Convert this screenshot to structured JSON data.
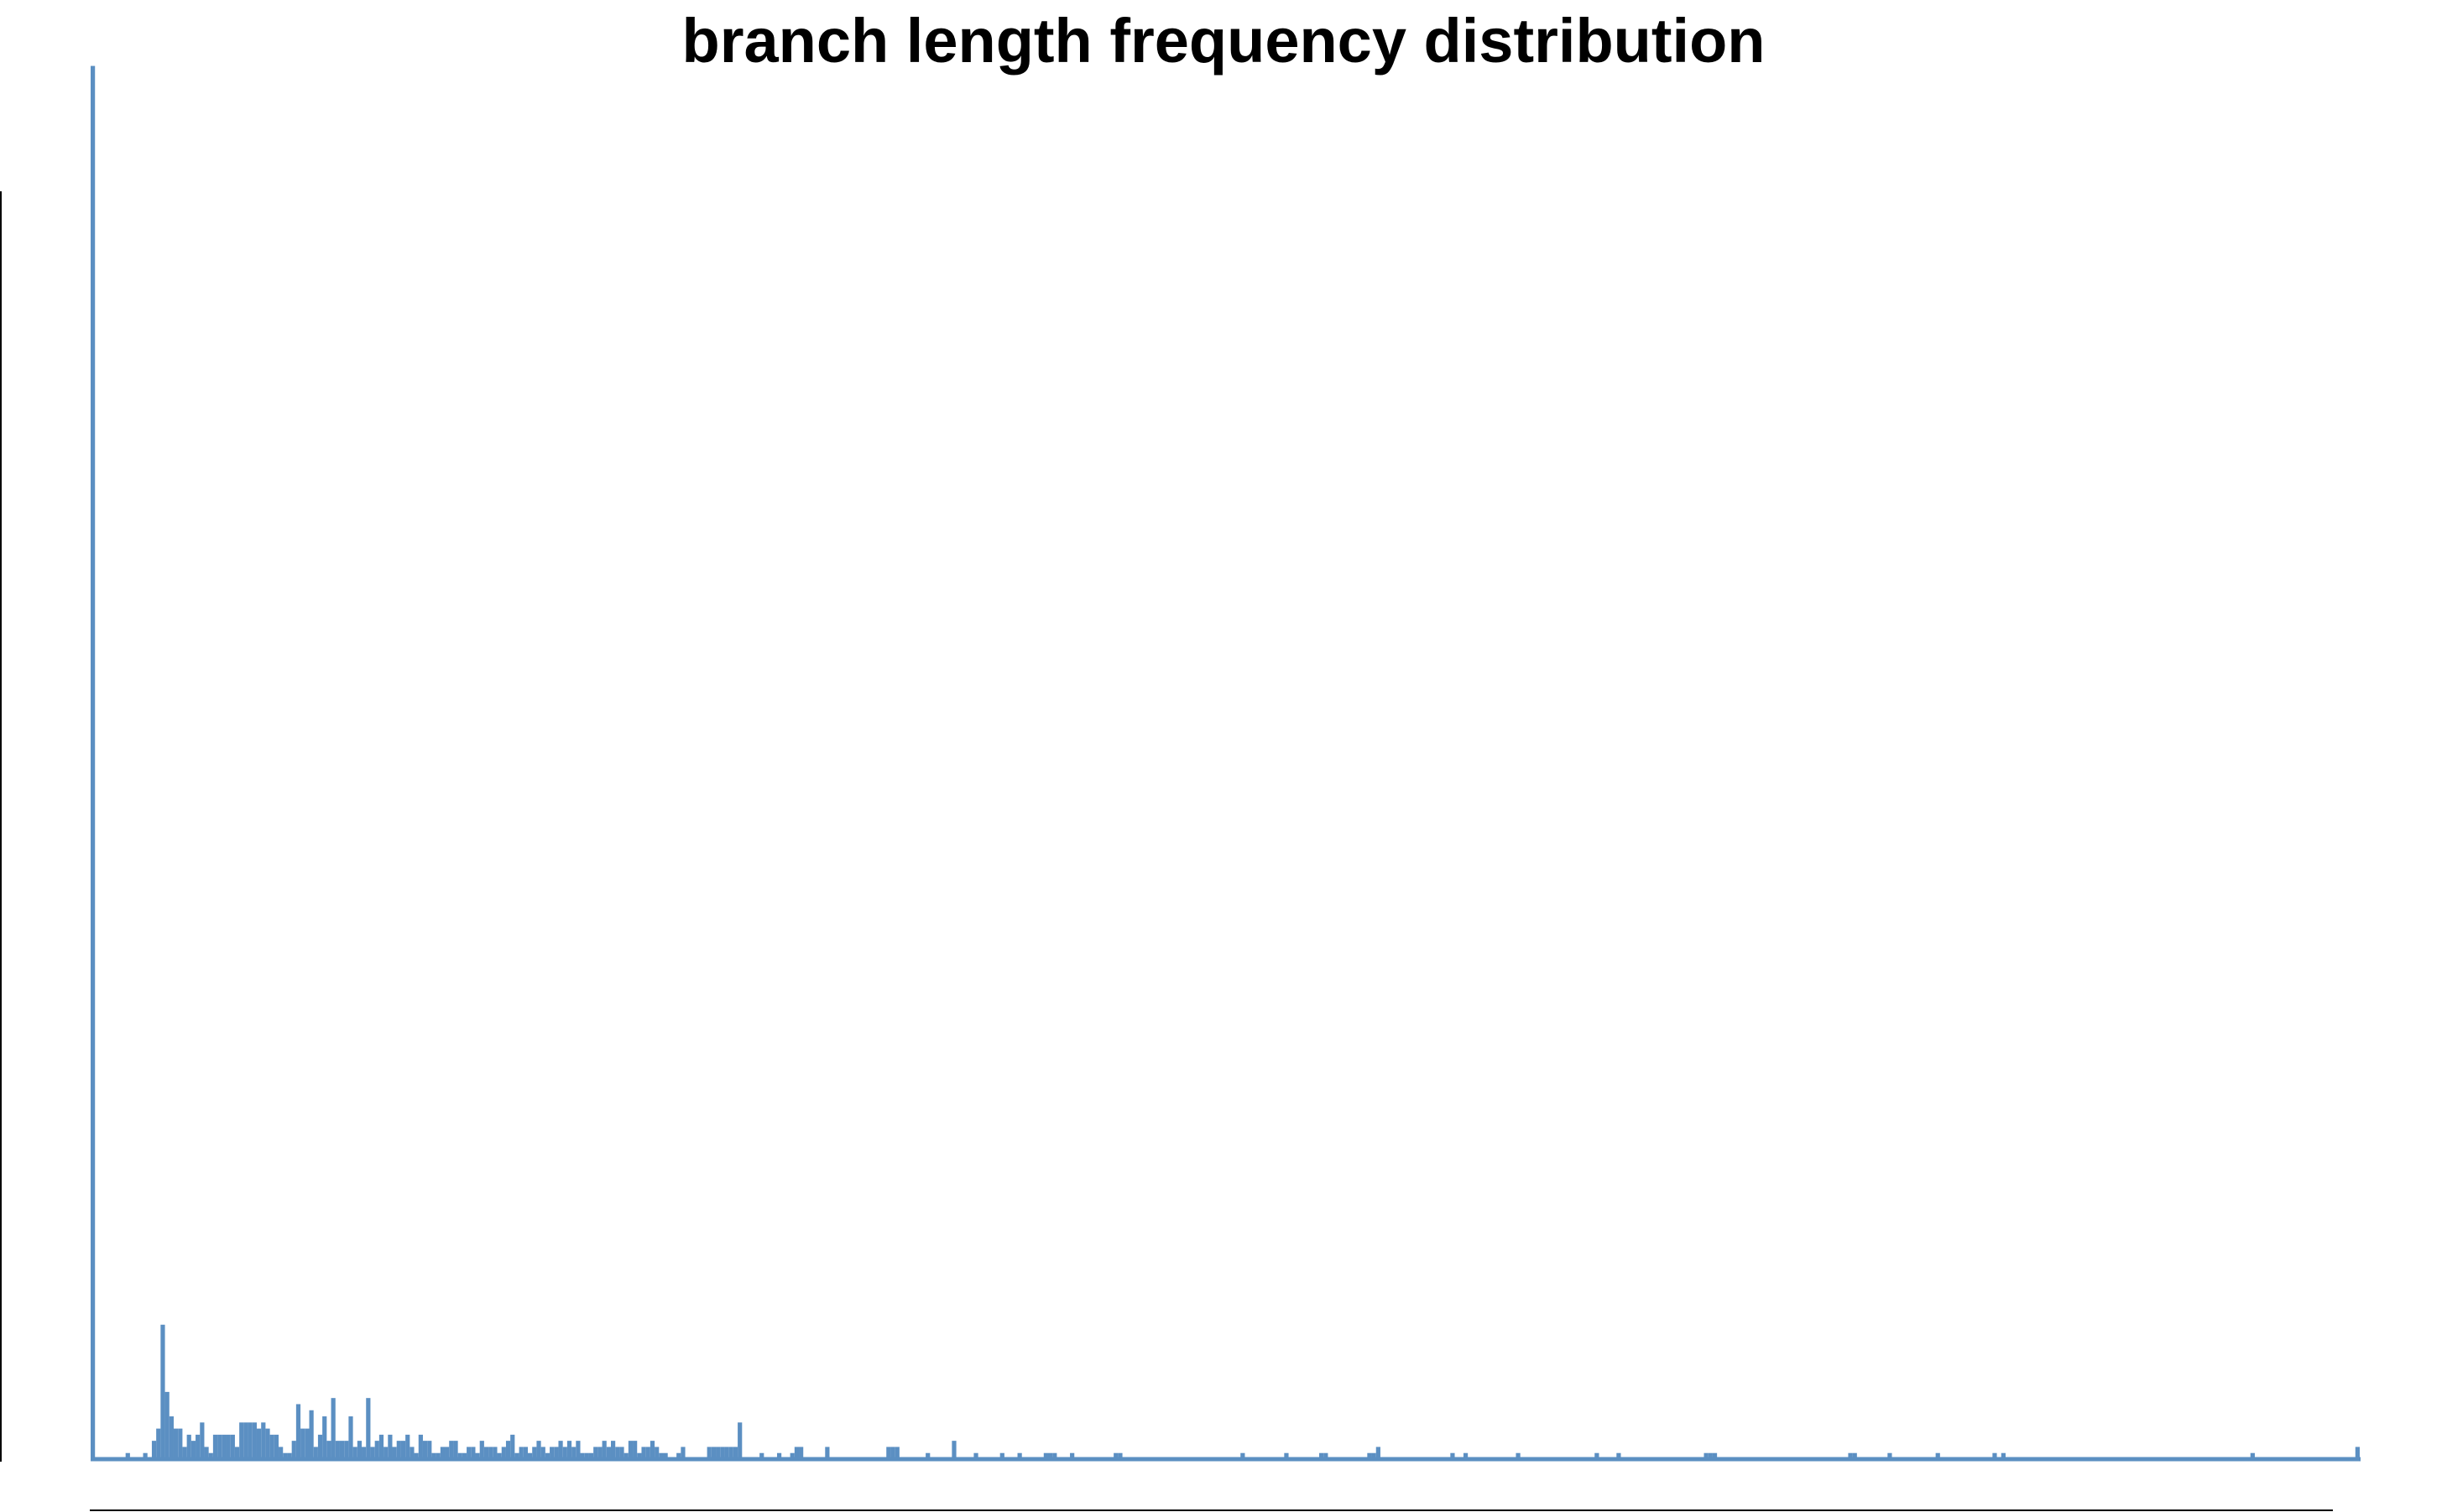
{
  "chart_data": {
    "type": "bar",
    "title": "branch length frequency distribution",
    "xlabel": "",
    "ylabel": "",
    "bar_color": "#5b8fc2",
    "grid": false,
    "legend": "none",
    "values": [
      228,
      0,
      0,
      0,
      0,
      0,
      0,
      0,
      1,
      0,
      0,
      0,
      1,
      0,
      3,
      5,
      22,
      11,
      7,
      5,
      5,
      2,
      4,
      3,
      4,
      6,
      2,
      1,
      4,
      4,
      4,
      4,
      4,
      2,
      6,
      6,
      6,
      6,
      5,
      6,
      5,
      4,
      4,
      2,
      1,
      1,
      3,
      9,
      5,
      5,
      8,
      2,
      4,
      7,
      3,
      10,
      3,
      3,
      3,
      7,
      2,
      3,
      2,
      10,
      2,
      3,
      4,
      2,
      4,
      2,
      3,
      3,
      4,
      2,
      1,
      4,
      3,
      3,
      1,
      1,
      2,
      2,
      3,
      3,
      1,
      1,
      2,
      2,
      1,
      3,
      2,
      2,
      2,
      1,
      2,
      3,
      4,
      1,
      2,
      2,
      1,
      2,
      3,
      2,
      1,
      2,
      2,
      3,
      2,
      3,
      2,
      3,
      1,
      1,
      1,
      2,
      2,
      3,
      2,
      3,
      2,
      2,
      1,
      3,
      3,
      1,
      2,
      2,
      3,
      2,
      1,
      1,
      0,
      0,
      1,
      2,
      0,
      0,
      0,
      0,
      0,
      2,
      2,
      2,
      2,
      2,
      2,
      2,
      6,
      0,
      0,
      0,
      0,
      1,
      0,
      0,
      0,
      1,
      0,
      0,
      1,
      2,
      2,
      0,
      0,
      0,
      0,
      0,
      2,
      0,
      0,
      0,
      0,
      0,
      0,
      0,
      0,
      0,
      0,
      0,
      0,
      0,
      2,
      2,
      2,
      0,
      0,
      0,
      0,
      0,
      0,
      1,
      0,
      0,
      0,
      0,
      0,
      3,
      0,
      0,
      0,
      0,
      1,
      0,
      0,
      0,
      0,
      0,
      1,
      0,
      0,
      0,
      1,
      0,
      0,
      0,
      0,
      0,
      1,
      1,
      1,
      0,
      0,
      0,
      1,
      0,
      0,
      0,
      0,
      0,
      0,
      0,
      0,
      0,
      1,
      1,
      0,
      0,
      0,
      0,
      0,
      0,
      0,
      0,
      0,
      0,
      0,
      0,
      0,
      0,
      0,
      0,
      0,
      0,
      0,
      0,
      0,
      0,
      0,
      0,
      0,
      0,
      0,
      1,
      0,
      0,
      0,
      0,
      0,
      0,
      0,
      0,
      0,
      1,
      0,
      0,
      0,
      0,
      0,
      0,
      0,
      1,
      1,
      0,
      0,
      0,
      0,
      0,
      0,
      0,
      0,
      0,
      1,
      1,
      2,
      0,
      0,
      0,
      0,
      0,
      0,
      0,
      0,
      0,
      0,
      0,
      0,
      0,
      0,
      0,
      0,
      1,
      0,
      0,
      1,
      0,
      0,
      0,
      0,
      0,
      0,
      0,
      0,
      0,
      0,
      0,
      1,
      0,
      0,
      0,
      0,
      0,
      0,
      0,
      0,
      0,
      0,
      0,
      0,
      0,
      0,
      0,
      0,
      0,
      1,
      0,
      0,
      0,
      0,
      1,
      0,
      0,
      0,
      0,
      0,
      0,
      0,
      0,
      0,
      0,
      0,
      0,
      0,
      0,
      0,
      0,
      0,
      0,
      0,
      1,
      1,
      1,
      0,
      0,
      0,
      0,
      0,
      0,
      0,
      0,
      0,
      0,
      0,
      0,
      0,
      0,
      0,
      0,
      0,
      0,
      0,
      0,
      0,
      0,
      0,
      0,
      0,
      0,
      0,
      0,
      0,
      0,
      1,
      1,
      0,
      0,
      0,
      0,
      0,
      0,
      0,
      1,
      0,
      0,
      0,
      0,
      0,
      0,
      0,
      0,
      0,
      0,
      1,
      0,
      0,
      0,
      0,
      0,
      0,
      0,
      0,
      0,
      0,
      0,
      0,
      1,
      0,
      1,
      0,
      0,
      0,
      0,
      0,
      0,
      0,
      0,
      0,
      0,
      0,
      0,
      0,
      0,
      0,
      0,
      0,
      0,
      0,
      0,
      0,
      0,
      0,
      0,
      0,
      0,
      0,
      0,
      0,
      0,
      0,
      0,
      0,
      0,
      0,
      0,
      0,
      0,
      0,
      0,
      0,
      0,
      0,
      0,
      0,
      0,
      0,
      0,
      0,
      0,
      0,
      0,
      0,
      0,
      0,
      0,
      1,
      0,
      0,
      0,
      0,
      0,
      0,
      0,
      0,
      0,
      0,
      0,
      0,
      0,
      0,
      0,
      0,
      0,
      0,
      0,
      0,
      0,
      0,
      0,
      2
    ],
    "ylim": [
      0,
      230
    ]
  }
}
